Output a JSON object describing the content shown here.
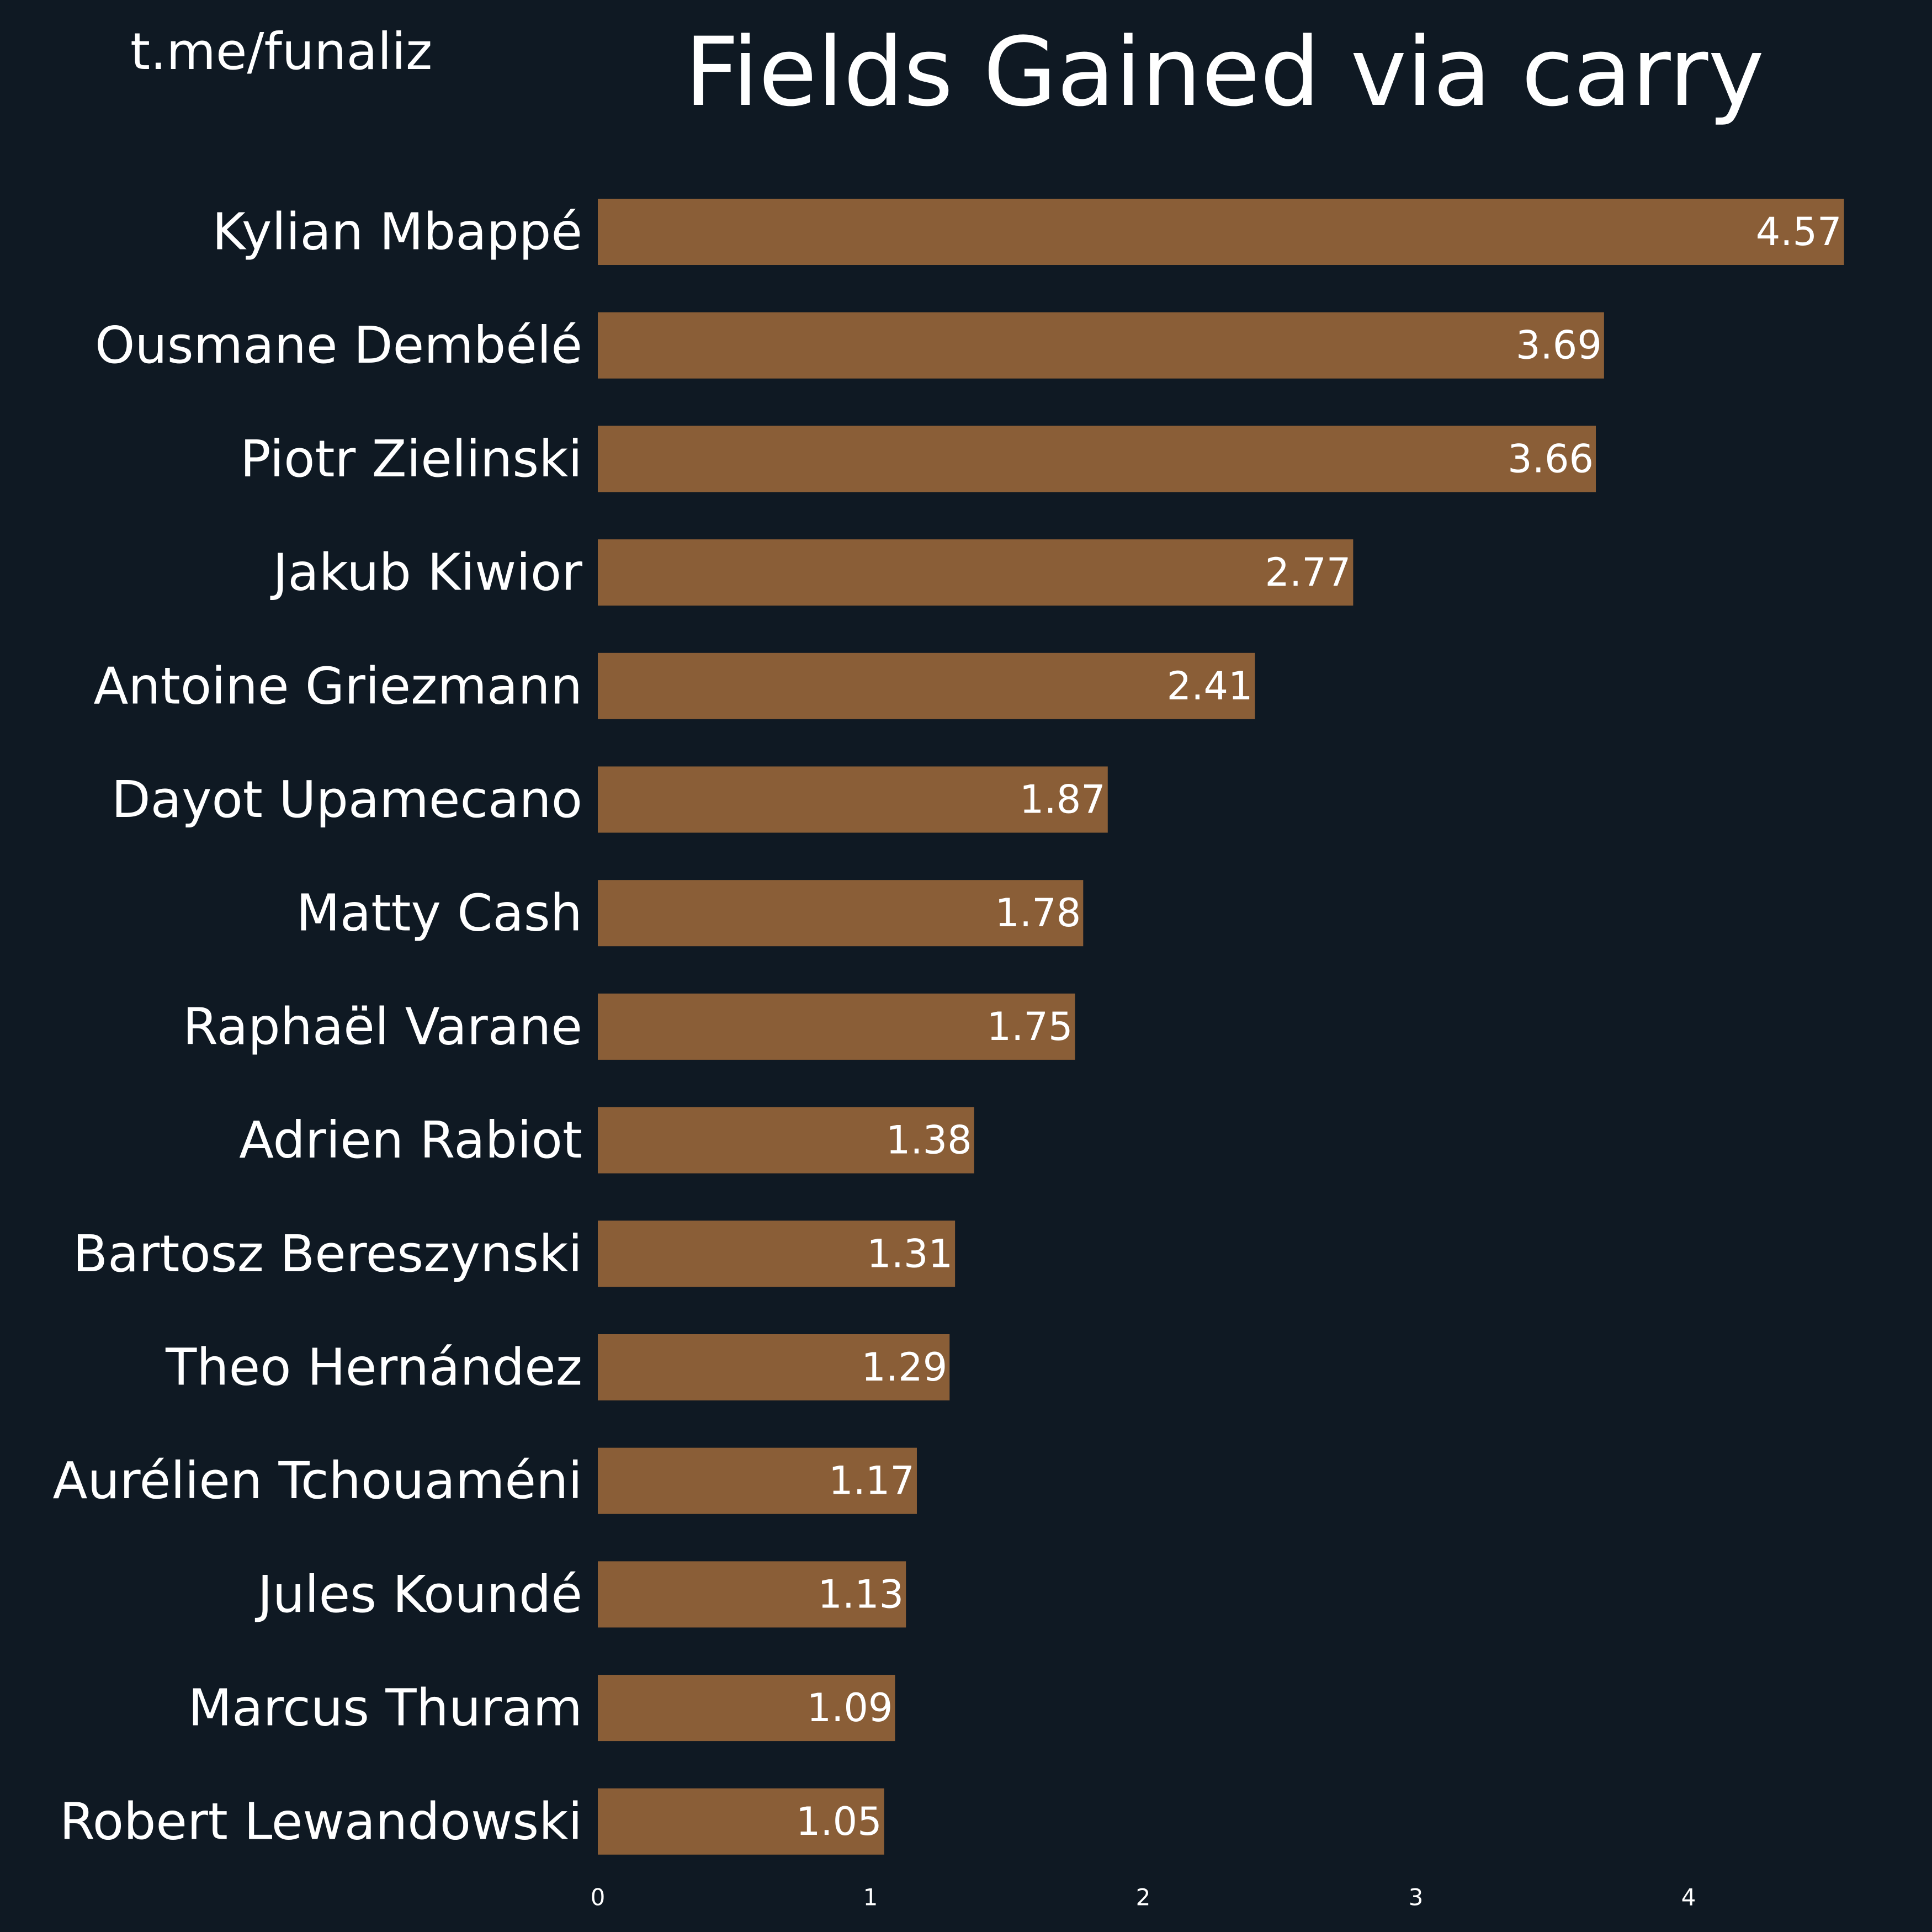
{
  "header": {
    "watermark": "t.me/funaliz"
  },
  "colors": {
    "background": "#0f1923",
    "bar": "#8a5e37",
    "text": "#ffffff"
  },
  "chart_data": {
    "type": "bar",
    "orientation": "horizontal",
    "title": "Fields Gained via carry",
    "xlabel": "",
    "ylabel": "",
    "categories": [
      "Kylian Mbappé",
      "Ousmane Dembélé",
      "Piotr Zielinski",
      "Jakub Kiwior",
      "Antoine Griezmann",
      "Dayot Upamecano",
      "Matty Cash",
      "Raphaël Varane",
      "Adrien Rabiot",
      "Bartosz Bereszynski",
      "Theo Hernández",
      "Aurélien Tchouaméni",
      "Jules Koundé",
      "Marcus Thuram",
      "Robert Lewandowski"
    ],
    "values": [
      4.57,
      3.69,
      3.66,
      2.77,
      2.41,
      1.87,
      1.78,
      1.75,
      1.38,
      1.31,
      1.29,
      1.17,
      1.13,
      1.09,
      1.05
    ],
    "value_labels": [
      "4.57",
      "3.69",
      "3.66",
      "2.77",
      "2.41",
      "1.87",
      "1.78",
      "1.75",
      "1.38",
      "1.31",
      "1.29",
      "1.17",
      "1.13",
      "1.09",
      "1.05"
    ],
    "xlim": [
      0,
      4.8
    ],
    "xticks": [
      0,
      1,
      2,
      3,
      4
    ],
    "xtick_labels": [
      "0",
      "1",
      "2",
      "3",
      "4"
    ],
    "grid": false,
    "legend": "none"
  }
}
